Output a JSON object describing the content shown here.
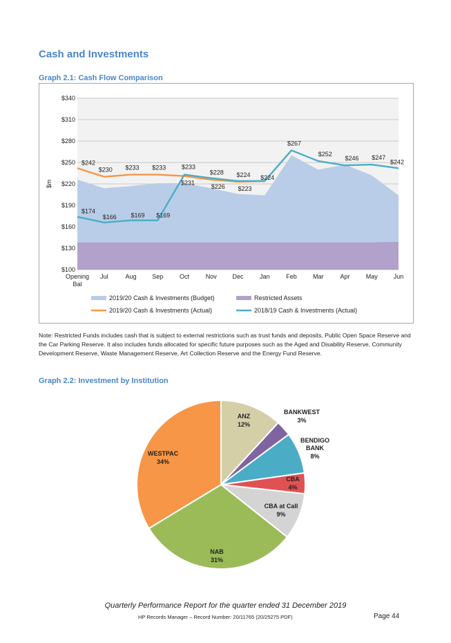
{
  "page": {
    "section_title": "Cash and Investments",
    "note": "Note: Restricted Funds includes cash that is subject to external restrictions such as trust funds and deposits, Public Open Space Reserve and the Car Parking Reserve. It also includes funds allocated for specific future purposes such as the Aged and Disability Reserve, Community Development Reserve, Waste Management Reserve, Art Collection Reserve and the Energy Fund Reserve.",
    "footer_title": "Quarterly Performance Report for the quarter ended 31 December 2019",
    "footer_record": "HP Records Manager – Record Number: 20/11765 (20/25275 PDF)",
    "footer_page": "Page 44"
  },
  "chart_data": [
    {
      "type": "line",
      "title": "Graph 2.1:  Cash Flow Comparison",
      "ylabel": "$m",
      "xlabel": "",
      "categories": [
        "Opening Bal",
        "Jul",
        "Aug",
        "Sep",
        "Oct",
        "Nov",
        "Dec",
        "Jan",
        "Feb",
        "Mar",
        "Apr",
        "May",
        "Jun"
      ],
      "yticks": [
        "$100",
        "$130",
        "$160",
        "$190",
        "$220",
        "$250",
        "$280",
        "$310",
        "$340"
      ],
      "ylim": [
        100,
        340
      ],
      "grid": true,
      "legend_position": "bottom",
      "series": [
        {
          "name": "2019/20 Cash & Investments (Budget)",
          "kind": "area",
          "color": "#b9cde8",
          "values": [
            226,
            214,
            217,
            221,
            221,
            214,
            206,
            204,
            260,
            240,
            247,
            232,
            204
          ]
        },
        {
          "name": "Restricted Assets",
          "kind": "area",
          "color": "#b1a1cb",
          "values": [
            138,
            138,
            138,
            138,
            138,
            138,
            138,
            138,
            138,
            138,
            138,
            138,
            139
          ]
        },
        {
          "name": "2019/20 Cash & Investments (Actual)",
          "kind": "line",
          "color": "#f79646",
          "values": [
            242,
            230,
            233,
            233,
            231,
            226,
            223,
            224,
            null,
            null,
            null,
            null,
            null
          ],
          "labels": [
            "$242",
            "$230",
            "$233",
            "$233",
            "$231",
            "$226",
            "$223",
            "",
            "",
            "",
            "",
            "",
            ""
          ]
        },
        {
          "name": "2018/19 Cash & Investments (Actual)",
          "kind": "line",
          "color": "#4bacc6",
          "values": [
            174,
            166,
            169,
            169,
            233,
            228,
            224,
            224,
            267,
            252,
            246,
            247,
            242
          ],
          "labels": [
            "$174",
            "$166",
            "$169",
            "$169",
            "$233",
            "$228",
            "$224",
            "$224",
            "$267",
            "$252",
            "$246",
            "$247",
            "$242"
          ]
        }
      ]
    },
    {
      "type": "pie",
      "title": "Graph 2.2:  Investment by Institution",
      "slices": [
        {
          "label": "ANZ",
          "value": 12,
          "color": "#d5cfa8"
        },
        {
          "label": "BANKWEST",
          "value": 3,
          "color": "#8064a2"
        },
        {
          "label": "BENDIGO BANK",
          "value": 8,
          "color": "#4bacc6"
        },
        {
          "label": "CBA",
          "value": 4,
          "color": "#e05252"
        },
        {
          "label": "CBA at Call",
          "value": 9,
          "color": "#d4d4d4"
        },
        {
          "label": "NAB",
          "value": 31,
          "color": "#9bbb59"
        },
        {
          "label": "WESTPAC",
          "value": 34,
          "color": "#f79646"
        }
      ]
    }
  ]
}
